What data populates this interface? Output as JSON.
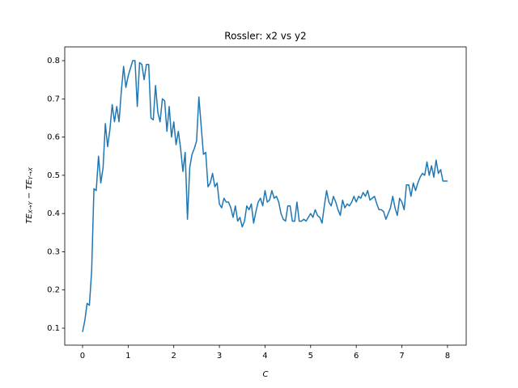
{
  "chart_data": {
    "type": "line",
    "title": "Rossler: x2 vs y2",
    "xlabel": "C",
    "ylabel": [
      "TE",
      "X→Y",
      " − TE",
      "Y→X"
    ],
    "x": [
      0,
      0.05,
      0.1,
      0.15,
      0.2,
      0.25,
      0.3,
      0.35,
      0.4,
      0.45,
      0.5,
      0.55,
      0.6,
      0.65,
      0.7,
      0.75,
      0.8,
      0.85,
      0.9,
      0.95,
      1,
      1.05,
      1.1,
      1.15,
      1.2,
      1.25,
      1.3,
      1.35,
      1.4,
      1.45,
      1.5,
      1.55,
      1.6,
      1.65,
      1.7,
      1.75,
      1.8,
      1.85,
      1.9,
      1.95,
      2,
      2.05,
      2.1,
      2.15,
      2.2,
      2.25,
      2.3,
      2.35,
      2.4,
      2.45,
      2.5,
      2.55,
      2.6,
      2.65,
      2.7,
      2.75,
      2.8,
      2.85,
      2.9,
      2.95,
      3,
      3.05,
      3.1,
      3.15,
      3.2,
      3.25,
      3.3,
      3.35,
      3.4,
      3.45,
      3.5,
      3.55,
      3.6,
      3.65,
      3.7,
      3.75,
      3.8,
      3.85,
      3.9,
      3.95,
      4,
      4.05,
      4.1,
      4.15,
      4.2,
      4.25,
      4.3,
      4.35,
      4.4,
      4.45,
      4.5,
      4.55,
      4.6,
      4.65,
      4.7,
      4.75,
      4.8,
      4.85,
      4.9,
      4.95,
      5,
      5.05,
      5.1,
      5.15,
      5.2,
      5.25,
      5.3,
      5.35,
      5.4,
      5.45,
      5.5,
      5.55,
      5.6,
      5.65,
      5.7,
      5.75,
      5.8,
      5.85,
      5.9,
      5.95,
      6,
      6.05,
      6.1,
      6.15,
      6.2,
      6.25,
      6.3,
      6.35,
      6.4,
      6.45,
      6.5,
      6.55,
      6.6,
      6.65,
      6.7,
      6.75,
      6.8,
      6.85,
      6.9,
      6.95,
      7,
      7.05,
      7.1,
      7.15,
      7.2,
      7.25,
      7.3,
      7.35,
      7.4,
      7.45,
      7.5,
      7.55,
      7.6,
      7.65,
      7.7,
      7.75,
      7.8,
      7.85,
      7.9,
      7.95,
      8
    ],
    "values": [
      0.09,
      0.12,
      0.165,
      0.16,
      0.25,
      0.465,
      0.46,
      0.55,
      0.48,
      0.52,
      0.635,
      0.575,
      0.62,
      0.685,
      0.64,
      0.68,
      0.64,
      0.72,
      0.785,
      0.73,
      0.76,
      0.78,
      0.8,
      0.8,
      0.68,
      0.795,
      0.79,
      0.75,
      0.79,
      0.79,
      0.65,
      0.645,
      0.735,
      0.665,
      0.64,
      0.7,
      0.695,
      0.615,
      0.68,
      0.6,
      0.64,
      0.58,
      0.615,
      0.57,
      0.51,
      0.56,
      0.385,
      0.52,
      0.555,
      0.57,
      0.59,
      0.705,
      0.63,
      0.555,
      0.56,
      0.47,
      0.48,
      0.505,
      0.47,
      0.48,
      0.425,
      0.415,
      0.44,
      0.43,
      0.43,
      0.415,
      0.39,
      0.42,
      0.38,
      0.39,
      0.365,
      0.38,
      0.42,
      0.41,
      0.425,
      0.375,
      0.405,
      0.43,
      0.44,
      0.42,
      0.46,
      0.43,
      0.435,
      0.46,
      0.44,
      0.445,
      0.43,
      0.4,
      0.385,
      0.38,
      0.42,
      0.42,
      0.38,
      0.38,
      0.43,
      0.38,
      0.38,
      0.385,
      0.38,
      0.39,
      0.4,
      0.39,
      0.41,
      0.395,
      0.39,
      0.375,
      0.42,
      0.46,
      0.43,
      0.42,
      0.445,
      0.43,
      0.41,
      0.395,
      0.435,
      0.415,
      0.425,
      0.42,
      0.43,
      0.445,
      0.43,
      0.445,
      0.44,
      0.455,
      0.445,
      0.46,
      0.435,
      0.44,
      0.445,
      0.425,
      0.41,
      0.41,
      0.405,
      0.385,
      0.4,
      0.415,
      0.445,
      0.415,
      0.395,
      0.44,
      0.43,
      0.41,
      0.475,
      0.475,
      0.445,
      0.48,
      0.46,
      0.48,
      0.495,
      0.505,
      0.5,
      0.535,
      0.5,
      0.525,
      0.495,
      0.54,
      0.505,
      0.515,
      0.485,
      0.485,
      0.485
    ],
    "color": "#1f77b4",
    "xlim": [
      -0.39,
      8.41
    ],
    "xticks": [
      0,
      1,
      2,
      3,
      4,
      5,
      6,
      7,
      8
    ],
    "ylim": [
      0.0556,
      0.836
    ],
    "yticks": [
      0.1,
      0.2,
      0.3,
      0.4,
      0.5,
      0.6,
      0.7,
      0.8
    ]
  }
}
